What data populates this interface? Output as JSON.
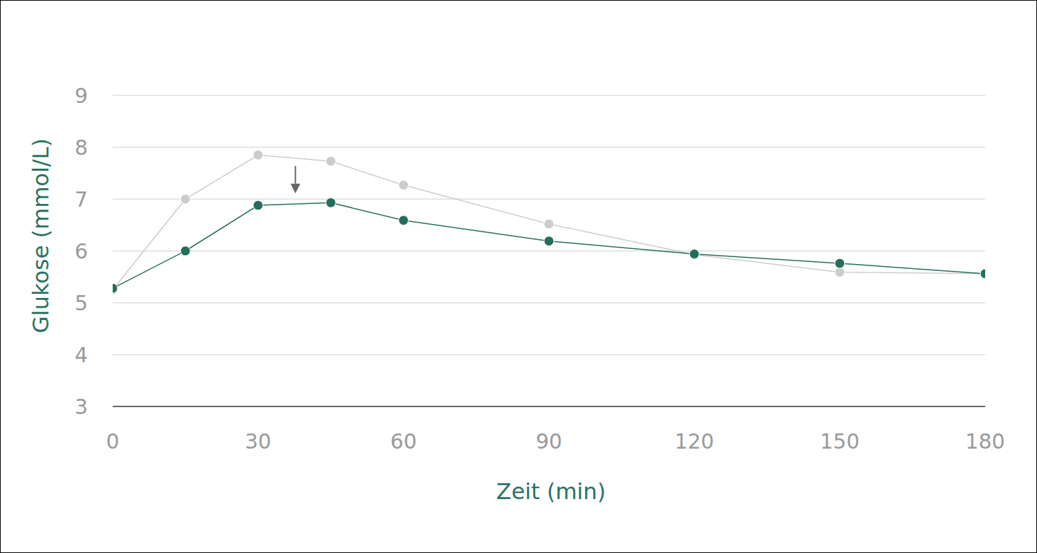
{
  "chart_data": {
    "type": "line",
    "x_label": "Zeit (min)",
    "y_label": "Glukose (mmol/L)",
    "x": [
      0,
      15,
      30,
      45,
      60,
      90,
      120,
      150,
      180
    ],
    "series": [
      {
        "color": "#cccccc",
        "marker": "circle",
        "values": [
          5.25,
          7.0,
          7.85,
          7.73,
          7.27,
          6.52,
          5.93,
          5.59,
          5.56
        ]
      },
      {
        "color": "#256d5d",
        "marker": "circle",
        "values": [
          5.28,
          6.0,
          6.88,
          6.93,
          6.59,
          6.19,
          5.94,
          5.76,
          5.56
        ]
      }
    ],
    "xlim": [
      0,
      180
    ],
    "xticks": [
      0,
      30,
      60,
      90,
      120,
      150,
      180
    ],
    "ylim": [
      3,
      9
    ],
    "yticks": [
      3,
      4,
      5,
      6,
      7,
      8,
      9
    ],
    "grid": true,
    "annotations": [
      {
        "type": "arrow",
        "x": 37.7,
        "y_start": 7.64,
        "y_end": 7.11
      }
    ]
  }
}
